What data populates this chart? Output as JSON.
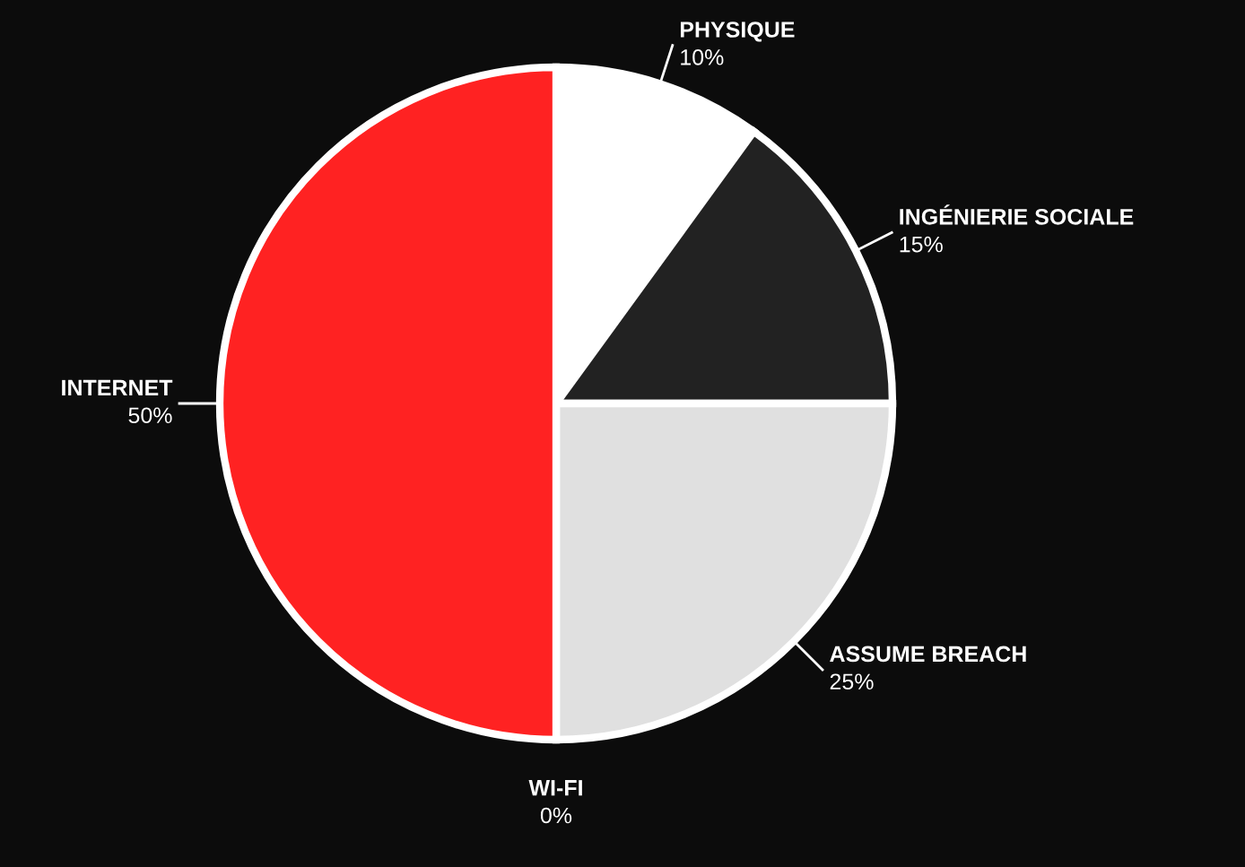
{
  "chart_data": {
    "type": "pie",
    "categories": [
      "PHYSIQUE",
      "INGÉNIERIE SOCIALE",
      "ASSUME BREACH",
      "WI-FI",
      "INTERNET"
    ],
    "values": [
      10,
      15,
      25,
      0,
      50
    ],
    "colors": [
      "#ffffff",
      "#222222",
      "#e0e0e0",
      "#888888",
      "#ff2222"
    ],
    "value_labels": [
      "10%",
      "15%",
      "25%",
      "0%",
      "50%"
    ]
  }
}
